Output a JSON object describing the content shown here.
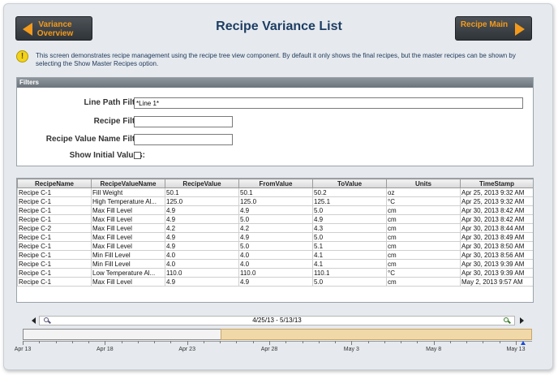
{
  "header": {
    "title": "Recipe Variance List",
    "left_button": "Variance Overview",
    "right_button": "Recipe Main"
  },
  "description": "This screen demonstrates recipe management using the recipe tree view component. By default it only shows the final recipes, but the master recipes can be shown by selecting the Show Master Recipes option.",
  "filters": {
    "header": "Filters",
    "line_path_label": "Line Path Filter:",
    "line_path_value": "*Line 1*",
    "recipe_label": "Recipe Filter:",
    "recipe_value": "",
    "value_name_label": "Recipe Value Name Filter:",
    "value_name_value": "",
    "show_initial_label": "Show Initial Values:",
    "show_initial_checked": false
  },
  "table": {
    "columns": [
      "RecipeName",
      "RecipeValueName",
      "RecipeValue",
      "FromValue",
      "ToValue",
      "Units",
      "TimeStamp"
    ],
    "rows": [
      [
        "Recipe C-1",
        "Fill Weight",
        "50.1",
        "50.1",
        "50.2",
        "oz",
        "Apr 25, 2013 9:32 AM"
      ],
      [
        "Recipe C-1",
        "High Temperature Al...",
        "125.0",
        "125.0",
        "125.1",
        "°C",
        "Apr 25, 2013 9:32 AM"
      ],
      [
        "Recipe C-1",
        "Max Fill Level",
        "4.9",
        "4.9",
        "5.0",
        "cm",
        "Apr 30, 2013 8:42 AM"
      ],
      [
        "Recipe C-1",
        "Max Fill Level",
        "4.9",
        "5.0",
        "4.9",
        "cm",
        "Apr 30, 2013 8:42 AM"
      ],
      [
        "Recipe C-2",
        "Max Fill Level",
        "4.2",
        "4.2",
        "4.3",
        "cm",
        "Apr 30, 2013 8:44 AM"
      ],
      [
        "Recipe C-1",
        "Max Fill Level",
        "4.9",
        "4.9",
        "5.0",
        "cm",
        "Apr 30, 2013 8:49 AM"
      ],
      [
        "Recipe C-1",
        "Max Fill Level",
        "4.9",
        "5.0",
        "5.1",
        "cm",
        "Apr 30, 2013 8:50 AM"
      ],
      [
        "Recipe C-1",
        "Min Fill Level",
        "4.0",
        "4.0",
        "4.1",
        "cm",
        "Apr 30, 2013 8:56 AM"
      ],
      [
        "Recipe C-1",
        "Min Fill Level",
        "4.0",
        "4.0",
        "4.1",
        "cm",
        "Apr 30, 2013 9:39 AM"
      ],
      [
        "Recipe C-1",
        "Low Temperature Al...",
        "110.0",
        "110.0",
        "110.1",
        "°C",
        "Apr 30, 2013 9:39 AM"
      ],
      [
        "Recipe C-1",
        "Max Fill Level",
        "4.9",
        "4.9",
        "5.0",
        "cm",
        "May 2, 2013 9:57 AM"
      ]
    ]
  },
  "timeline": {
    "range_label": "4/25/13 - 5/13/13",
    "tick_labels": [
      "Apr 13",
      "Apr 18",
      "Apr 23",
      "Apr 28",
      "May 3",
      "May 8",
      "May 13"
    ],
    "selection_start": "Apr 25",
    "selection_end": "May 13"
  },
  "colors": {
    "accent": "#f39a1b",
    "title": "#1d3d63",
    "selection": "#f1d8a8"
  }
}
